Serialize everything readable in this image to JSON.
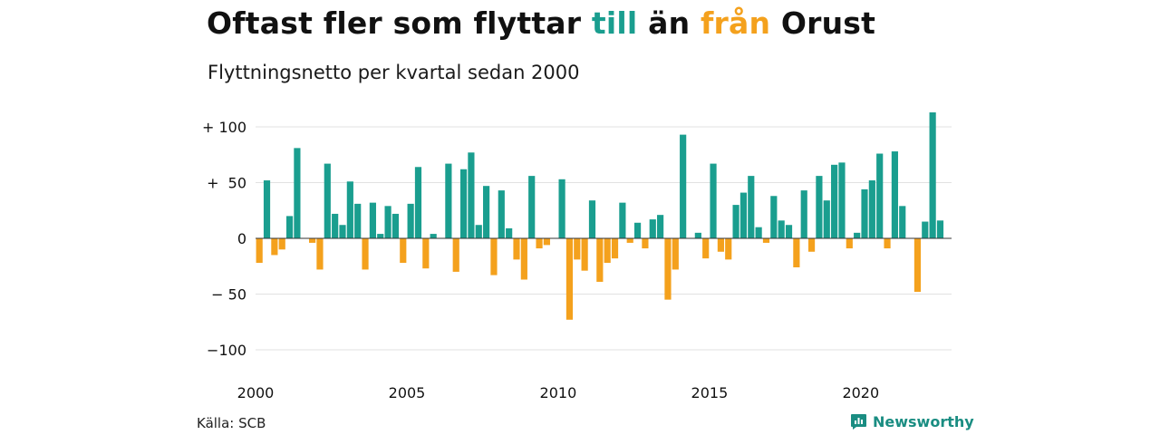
{
  "title": {
    "part1": "Oftast fler som flyttar ",
    "word_in": "till",
    "part2": " än ",
    "word_out": "från",
    "part3": " Orust"
  },
  "subtitle": "Flyttningsnetto per kvartal sedan 2000",
  "source": "Källa: SCB",
  "brand": {
    "name": "Newsworthy",
    "icon": "newsworthy-logo-icon"
  },
  "colors": {
    "positive": "#1a9e8f",
    "negative": "#f4a11d",
    "grid": "#e2e2e2",
    "brand": "#1a8d82"
  },
  "chart_data": {
    "type": "bar",
    "title": "Oftast fler som flyttar till än från Orust",
    "subtitle": "Flyttningsnetto per kvartal sedan 2000",
    "xlabel": "",
    "ylabel": "",
    "ylim": [
      -100,
      110
    ],
    "yticks": [
      100,
      50,
      0,
      -50,
      -100
    ],
    "ytick_labels": [
      "+ 100",
      "+  50",
      "0",
      "− 50",
      "−100"
    ],
    "xticks": [
      2000,
      2005,
      2010,
      2015,
      2020
    ],
    "grid": true,
    "categories": [
      "2000K1",
      "2000K2",
      "2000K3",
      "2000K4",
      "2001K1",
      "2001K2",
      "2001K3",
      "2001K4",
      "2002K1",
      "2002K2",
      "2002K3",
      "2002K4",
      "2003K1",
      "2003K2",
      "2003K3",
      "2003K4",
      "2004K1",
      "2004K2",
      "2004K3",
      "2004K4",
      "2005K1",
      "2005K2",
      "2005K3",
      "2005K4",
      "2006K1",
      "2006K2",
      "2006K3",
      "2006K4",
      "2007K1",
      "2007K2",
      "2007K3",
      "2007K4",
      "2008K1",
      "2008K2",
      "2008K3",
      "2008K4",
      "2009K1",
      "2009K2",
      "2009K3",
      "2009K4",
      "2010K1",
      "2010K2",
      "2010K3",
      "2010K4",
      "2011K1",
      "2011K2",
      "2011K3",
      "2011K4",
      "2012K1",
      "2012K2",
      "2012K3",
      "2012K4",
      "2013K1",
      "2013K2",
      "2013K3",
      "2013K4",
      "2014K1",
      "2014K2",
      "2014K3",
      "2014K4",
      "2015K1",
      "2015K2",
      "2015K3",
      "2015K4",
      "2016K1",
      "2016K2",
      "2016K3",
      "2016K4",
      "2017K1",
      "2017K2",
      "2017K3",
      "2017K4",
      "2018K1",
      "2018K2",
      "2018K3",
      "2018K4",
      "2019K1",
      "2019K2",
      "2019K3",
      "2019K4",
      "2020K1",
      "2020K2",
      "2020K3",
      "2020K4",
      "2021K1",
      "2021K2",
      "2021K3",
      "2021K4",
      "2022K1",
      "2022K2",
      "2022K3",
      "2022K4"
    ],
    "values": [
      -22,
      52,
      -15,
      -10,
      20,
      81,
      0,
      -4,
      -28,
      67,
      22,
      12,
      51,
      31,
      -28,
      32,
      4,
      29,
      22,
      -22,
      31,
      64,
      -27,
      4,
      0,
      67,
      -30,
      62,
      77,
      12,
      47,
      -33,
      43,
      9,
      -19,
      -37,
      56,
      -9,
      -6,
      0,
      53,
      -73,
      -19,
      -29,
      34,
      -39,
      -22,
      -18,
      32,
      -4,
      14,
      -9,
      17,
      21,
      -55,
      -28,
      93,
      0,
      5,
      -18,
      67,
      -12,
      -19,
      30,
      41,
      56,
      10,
      -4,
      38,
      16,
      12,
      -26,
      43,
      -12,
      56,
      34,
      66,
      68,
      -9,
      5,
      44,
      52,
      76,
      -9,
      78,
      29,
      0,
      -48,
      15,
      113,
      16,
      0
    ]
  }
}
